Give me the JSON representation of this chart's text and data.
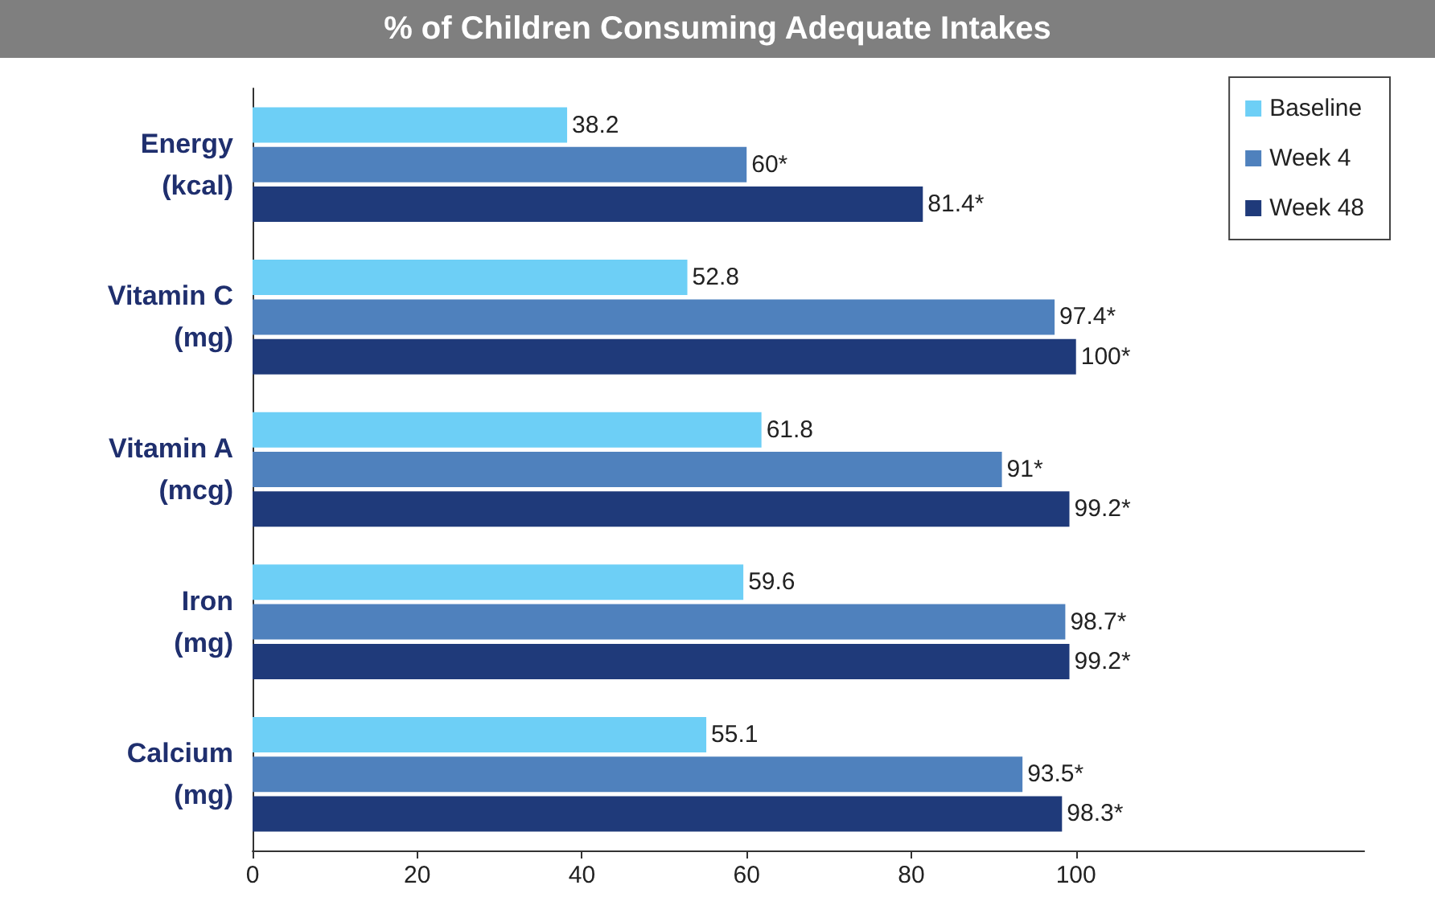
{
  "chart_data": {
    "type": "bar",
    "orientation": "horizontal",
    "title": "% of Children Consuming Adequate Intakes",
    "categories": [
      "Energy\n(kcal)",
      "Vitamin C\n(mg)",
      "Vitamin A\n(mcg)",
      "Iron\n(mg)",
      "Calcium\n(mg)"
    ],
    "series": [
      {
        "name": "Baseline",
        "color": "#6dcff6",
        "values": [
          38.2,
          52.8,
          61.8,
          59.6,
          55.1
        ],
        "value_labels": [
          "38.2",
          "52.8",
          "61.8",
          "59.6",
          "55.1"
        ]
      },
      {
        "name": "Week 4",
        "color": "#4f81bd",
        "values": [
          60,
          97.4,
          91,
          98.7,
          93.5
        ],
        "value_labels": [
          "60*",
          "97.4*",
          "91*",
          "98.7*",
          "93.5*"
        ]
      },
      {
        "name": "Week 48",
        "color": "#1f3a7a",
        "values": [
          81.4,
          100,
          99.2,
          99.2,
          98.3
        ],
        "value_labels": [
          "81.4*",
          "100*",
          "99.2*",
          "99.2*",
          "98.3*"
        ]
      }
    ],
    "xlim": [
      0,
      135
    ],
    "xticks": [
      0,
      20,
      40,
      60,
      80,
      100
    ],
    "grid": false,
    "legend": "top right"
  }
}
